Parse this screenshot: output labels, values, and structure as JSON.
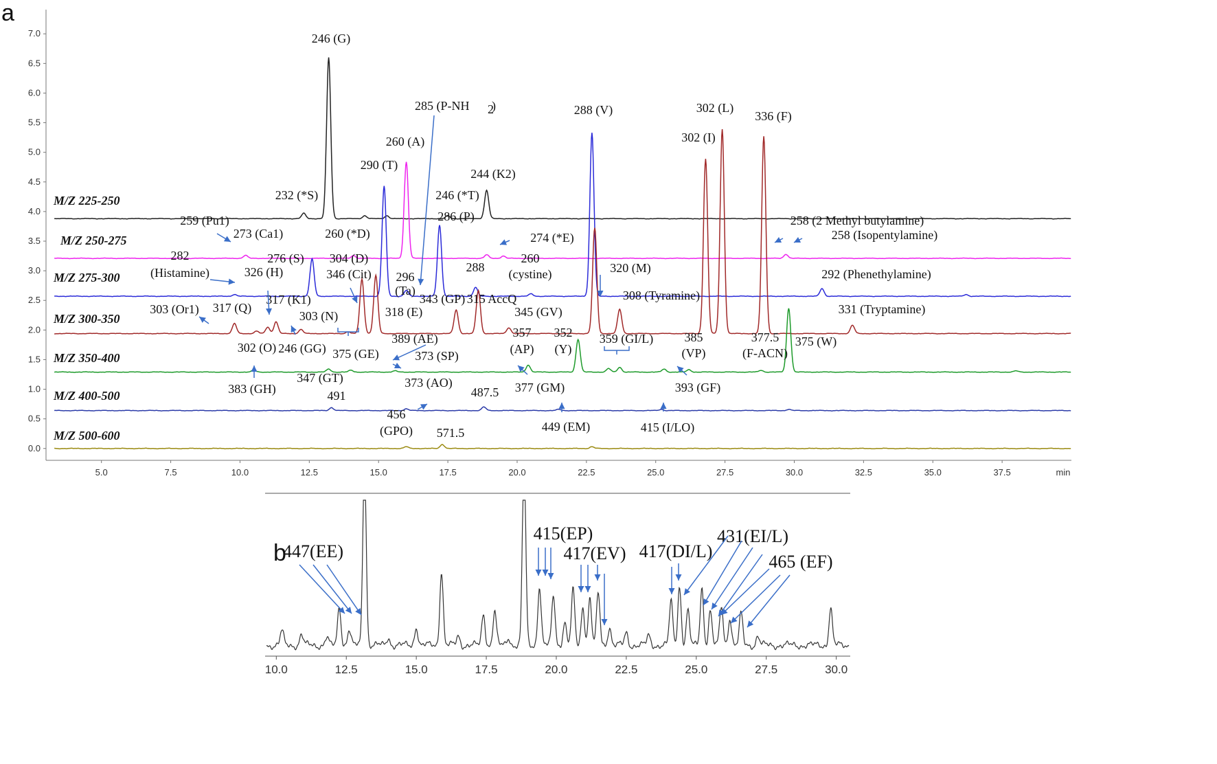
{
  "panels": {
    "a": "a",
    "b": "b"
  },
  "chart_data": [
    {
      "type": "line",
      "panel": "a",
      "xlabel": "min",
      "xlim": [
        3.0,
        40.0
      ],
      "ylim": [
        -0.2,
        7.2
      ],
      "xticks": [
        "5.0",
        "7.5",
        "10.0",
        "12.5",
        "15.0",
        "17.5",
        "20.0",
        "22.5",
        "25.0",
        "27.5",
        "30.0",
        "32.5",
        "35.0",
        "37.5"
      ],
      "yticks": [
        "7.0",
        "6.5",
        "6.0",
        "5.5",
        "5.0",
        "4.5",
        "4.0",
        "3.5",
        "3.0",
        "2.5",
        "2.0",
        "1.5",
        "1.0",
        "0.5",
        "0.0"
      ],
      "series": [
        {
          "name": "M/Z 225-250",
          "color": "#222222",
          "baseline": 3.88,
          "x_end": 40.0,
          "peaks": [
            [
              12.3,
              0.09
            ],
            [
              13.2,
              2.72
            ],
            [
              14.5,
              0.05
            ],
            [
              15.3,
              0.05
            ],
            [
              17.5,
              0.05
            ],
            [
              18.9,
              0.48
            ]
          ]
        },
        {
          "name": "M/Z 250-275",
          "color": "#ee22ee",
          "baseline": 3.21,
          "x_end": 40.0,
          "peaks": [
            [
              10.2,
              0.05
            ],
            [
              14.1,
              0.05
            ],
            [
              16.0,
              1.63
            ],
            [
              18.9,
              0.06
            ],
            [
              19.5,
              0.04
            ],
            [
              29.7,
              0.07
            ]
          ]
        },
        {
          "name": "M/Z 275-300",
          "color": "#2a2ad8",
          "baseline": 2.57,
          "x_end": 40.0,
          "peaks": [
            [
              9.8,
              0.03
            ],
            [
              12.6,
              0.63
            ],
            [
              15.2,
              1.86
            ],
            [
              16.0,
              0.1
            ],
            [
              17.2,
              1.2
            ],
            [
              18.5,
              0.15
            ],
            [
              20.5,
              0.04
            ],
            [
              22.7,
              2.76
            ],
            [
              31.0,
              0.13
            ],
            [
              36.2,
              0.03
            ]
          ]
        },
        {
          "name": "M/Z 300-350",
          "color": "#a02828",
          "baseline": 1.94,
          "x_end": 40.0,
          "peaks": [
            [
              9.8,
              0.17
            ],
            [
              10.6,
              0.04
            ],
            [
              11.0,
              0.11
            ],
            [
              11.3,
              0.2
            ],
            [
              12.2,
              0.07
            ],
            [
              13.9,
              0.03
            ],
            [
              14.4,
              0.92
            ],
            [
              14.9,
              0.98
            ],
            [
              17.8,
              0.4
            ],
            [
              18.6,
              0.73
            ],
            [
              19.7,
              0.1
            ],
            [
              22.8,
              1.78
            ],
            [
              23.7,
              0.41
            ],
            [
              26.8,
              2.95
            ],
            [
              27.4,
              3.45
            ],
            [
              28.9,
              3.33
            ],
            [
              32.1,
              0.14
            ]
          ]
        },
        {
          "name": "M/Z 350-400",
          "color": "#1d9a2a",
          "baseline": 1.29,
          "x_end": 40.0,
          "peaks": [
            [
              10.5,
              0.03
            ],
            [
              13.2,
              0.05
            ],
            [
              14.0,
              0.03
            ],
            [
              15.6,
              0.02
            ],
            [
              20.4,
              0.12
            ],
            [
              22.2,
              0.55
            ],
            [
              23.3,
              0.06
            ],
            [
              23.7,
              0.08
            ],
            [
              25.3,
              0.05
            ],
            [
              26.2,
              0.04
            ],
            [
              28.8,
              0.03
            ],
            [
              29.8,
              1.08
            ],
            [
              38.0,
              0.02
            ]
          ]
        },
        {
          "name": "M/Z 400-500",
          "color": "#2a3aa8",
          "baseline": 0.64,
          "x_end": 40.0,
          "peaks": [
            [
              13.3,
              0.05
            ],
            [
              16.0,
              0.03
            ],
            [
              18.8,
              0.06
            ],
            [
              21.5,
              0.02
            ],
            [
              25.2,
              0.02
            ],
            [
              29.8,
              0.02
            ]
          ]
        },
        {
          "name": "M/Z 500-600",
          "color": "#9a8a10",
          "baseline": 0.0,
          "x_end": 40.0,
          "peaks": [
            [
              16.0,
              0.03
            ],
            [
              17.3,
              0.07
            ],
            [
              22.7,
              0.03
            ]
          ]
        }
      ],
      "row_labels": [
        "M/Z 225-250",
        "M/Z 250-275",
        "M/Z 275-300",
        "M/Z 300-350",
        "M/Z 350-400",
        "M/Z 400-500",
        "M/Z 500-600"
      ],
      "annotations": [
        {
          "text": "246 (G)"
        },
        {
          "text": "232 (*S)"
        },
        {
          "text": "290 (T)"
        },
        {
          "text": "260 (A)"
        },
        {
          "text": "285 (P-NH"
        },
        {
          "text": "2"
        },
        {
          "text": ")"
        },
        {
          "text": "246 (*T)"
        },
        {
          "text": "244 (K2)"
        },
        {
          "text": "288 (V)"
        },
        {
          "text": "302 (L)"
        },
        {
          "text": "302 (I)"
        },
        {
          "text": "336 (F)"
        },
        {
          "text": "259 (Pu1)"
        },
        {
          "text": "273 (Ca1)"
        },
        {
          "text": "260 (*D)"
        },
        {
          "text": "286 (P)"
        },
        {
          "text": "274 (*E)"
        },
        {
          "text": "258 (2 Methyl butylamine)"
        },
        {
          "text": "258 (Isopentylamine)"
        },
        {
          "text": "282"
        },
        {
          "text": "(Histamine)"
        },
        {
          "text": "276 (S)"
        },
        {
          "text": "326 (H)"
        },
        {
          "text": "304 (D)"
        },
        {
          "text": "346 (Cit)"
        },
        {
          "text": "296"
        },
        {
          "text": "(Ta)"
        },
        {
          "text": "288"
        },
        {
          "text": "260"
        },
        {
          "text": "(cystine)"
        },
        {
          "text": "320 (M)"
        },
        {
          "text": "292 (Phenethylamine)"
        },
        {
          "text": "303 (Or1)"
        },
        {
          "text": "317 (Q)"
        },
        {
          "text": "317 (K1)"
        },
        {
          "text": "303 (N)"
        },
        {
          "text": "318 (E)"
        },
        {
          "text": "343 (GP)"
        },
        {
          "text": "315 AccQ"
        },
        {
          "text": "345 (GV)"
        },
        {
          "text": "308 (Tyramine)"
        },
        {
          "text": "331 (Tryptamine)"
        },
        {
          "text": "302 (O)"
        },
        {
          "text": "246 (GG)"
        },
        {
          "text": "389 (AE)"
        },
        {
          "text": "375 (GE)"
        },
        {
          "text": "373 (SP)"
        },
        {
          "text": "357"
        },
        {
          "text": "(AP)"
        },
        {
          "text": "352"
        },
        {
          "text": "(Y)"
        },
        {
          "text": "359 (GI/L)"
        },
        {
          "text": "385"
        },
        {
          "text": "(VP)"
        },
        {
          "text": "377.5"
        },
        {
          "text": "(F-ACN)"
        },
        {
          "text": "375 (W)"
        },
        {
          "text": "383 (GH)"
        },
        {
          "text": "347 (GT)"
        },
        {
          "text": "373 (AO)"
        },
        {
          "text": "377 (GM)"
        },
        {
          "text": "393 (GF)"
        },
        {
          "text": "491"
        },
        {
          "text": "487.5"
        },
        {
          "text": "456"
        },
        {
          "text": "(GPO)"
        },
        {
          "text": "449 (EM)"
        },
        {
          "text": "415 (I/LO)"
        },
        {
          "text": "571.5"
        }
      ]
    },
    {
      "type": "line",
      "panel": "b",
      "xlim": [
        9.6,
        30.5
      ],
      "ylim": [
        0.0,
        1.0
      ],
      "xticks": [
        "10.0",
        "12.5",
        "15.0",
        "17.5",
        "20.0",
        "22.5",
        "25.0",
        "27.5",
        "30.0"
      ],
      "series": [
        {
          "name": "",
          "color": "#333333",
          "baseline": 0.07,
          "peaks": [
            [
              10.2,
              0.09
            ],
            [
              10.9,
              0.07
            ],
            [
              11.8,
              0.05
            ],
            [
              12.25,
              0.25
            ],
            [
              12.6,
              0.1
            ],
            [
              13.15,
              1.2
            ],
            [
              14.0,
              0.05
            ],
            [
              15.0,
              0.12
            ],
            [
              15.9,
              0.48
            ],
            [
              16.5,
              0.06
            ],
            [
              17.4,
              0.2
            ],
            [
              17.8,
              0.22
            ],
            [
              18.3,
              0.05
            ],
            [
              18.85,
              1.2
            ],
            [
              19.4,
              0.38
            ],
            [
              19.9,
              0.32
            ],
            [
              20.3,
              0.15
            ],
            [
              20.6,
              0.35
            ],
            [
              20.95,
              0.25
            ],
            [
              21.2,
              0.3
            ],
            [
              21.5,
              0.33
            ],
            [
              21.9,
              0.12
            ],
            [
              22.5,
              0.08
            ],
            [
              23.3,
              0.06
            ],
            [
              24.1,
              0.28
            ],
            [
              24.4,
              0.38
            ],
            [
              24.7,
              0.22
            ],
            [
              25.2,
              0.37
            ],
            [
              25.5,
              0.22
            ],
            [
              25.9,
              0.25
            ],
            [
              26.2,
              0.18
            ],
            [
              26.6,
              0.2
            ],
            [
              27.2,
              0.06
            ],
            [
              29.8,
              0.24
            ]
          ]
        }
      ],
      "annotations": [
        {
          "text": "447(EE)"
        },
        {
          "text": "415(EP)"
        },
        {
          "text": "417(EV)"
        },
        {
          "text": "417(DI/L)"
        },
        {
          "text": "431(EI/L)"
        },
        {
          "text": "465 (EF)"
        }
      ]
    }
  ]
}
